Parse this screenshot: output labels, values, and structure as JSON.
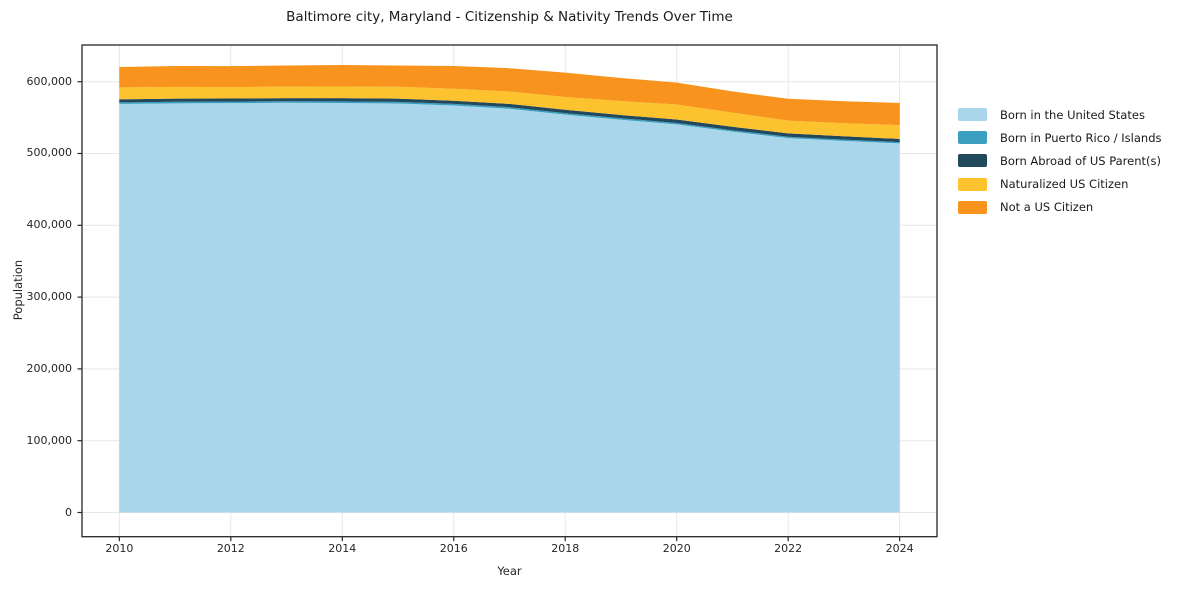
{
  "chart_data": {
    "type": "area",
    "stacked": true,
    "title": "Baltimore city, Maryland - Citizenship & Nativity Trends Over Time",
    "xlabel": "Year",
    "ylabel": "Population",
    "x": [
      2010,
      2011,
      2012,
      2013,
      2014,
      2015,
      2016,
      2017,
      2018,
      2019,
      2020,
      2021,
      2022,
      2023,
      2024
    ],
    "series": [
      {
        "name": "Born in the United States",
        "color": "#a9d6ea",
        "values": [
          569000,
          569800,
          570200,
          570600,
          570300,
          569600,
          566800,
          562300,
          554200,
          547000,
          540500,
          530500,
          521500,
          517500,
          514000
        ]
      },
      {
        "name": "Born in Puerto Rico / Islands",
        "color": "#3a9fc0",
        "values": [
          2200,
          2200,
          2100,
          2200,
          2300,
          2300,
          2200,
          2200,
          2100,
          2100,
          2000,
          2000,
          1900,
          1900,
          1800
        ]
      },
      {
        "name": "Born Abroad of US Parent(s)",
        "color": "#22485c",
        "values": [
          4300,
          4400,
          4300,
          4400,
          4500,
          4500,
          4400,
          4500,
          4600,
          4500,
          4800,
          4700,
          4600,
          4500,
          4500
        ]
      },
      {
        "name": "Naturalized US Citizen",
        "color": "#fdc32f",
        "values": [
          16500,
          16300,
          15800,
          15900,
          16200,
          16500,
          16900,
          17300,
          17800,
          19500,
          21000,
          19800,
          17800,
          18300,
          19200
        ]
      },
      {
        "name": "Not a US Citizen",
        "color": "#f8941d",
        "values": [
          28500,
          29100,
          29300,
          29500,
          30000,
          29700,
          31500,
          32500,
          34000,
          32000,
          30500,
          29500,
          30400,
          30500,
          31000
        ]
      }
    ],
    "xlim": [
      2009.33,
      2024.67
    ],
    "ylim": [
      -33700,
      651100
    ],
    "x_ticks": [
      2010,
      2012,
      2014,
      2016,
      2018,
      2020,
      2022,
      2024
    ],
    "y_ticks": [
      0,
      100000,
      200000,
      300000,
      400000,
      500000,
      600000
    ],
    "y_tick_labels": [
      "0",
      "100,000",
      "200,000",
      "300,000",
      "400,000",
      "500,000",
      "600,000"
    ],
    "grid": true,
    "legend_position": "right",
    "colors": {
      "grid": "#e7e7e7",
      "spine": "#262626",
      "background": "#ffffff"
    }
  }
}
